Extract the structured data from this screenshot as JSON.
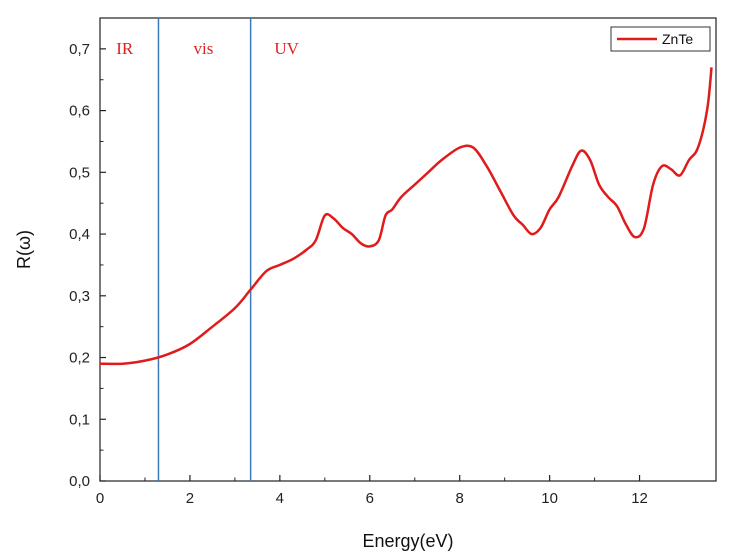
{
  "chart_data": {
    "type": "line",
    "xlabel": "Energy(eV)",
    "ylabel": "R(ω)",
    "xlim": [
      0,
      13.7
    ],
    "ylim": [
      0,
      0.75
    ],
    "x_ticks": [
      0,
      2,
      4,
      6,
      8,
      10,
      12
    ],
    "y_ticks": [
      0.0,
      0.1,
      0.2,
      0.3,
      0.4,
      0.5,
      0.6,
      0.7
    ],
    "y_tick_labels": [
      "0,0",
      "0,1",
      "0,2",
      "0,3",
      "0,4",
      "0,5",
      "0,6",
      "0,7"
    ],
    "legend": {
      "position": "top-right",
      "entries": [
        "ZnTe"
      ]
    },
    "grid": false,
    "line_color": "#e01b1b",
    "divider_color": "#3a78b8",
    "vertical_lines": [
      1.3,
      3.35
    ],
    "regions": [
      {
        "label": "IR",
        "x": 0.55
      },
      {
        "label": "vis",
        "x": 2.3
      },
      {
        "label": "UV",
        "x": 4.15
      }
    ],
    "series": [
      {
        "name": "ZnTe",
        "x": [
          0,
          0.5,
          1.0,
          1.5,
          2.0,
          2.5,
          3.0,
          3.35,
          3.7,
          4.0,
          4.3,
          4.6,
          4.8,
          5.0,
          5.2,
          5.4,
          5.6,
          5.8,
          6.0,
          6.2,
          6.35,
          6.5,
          6.7,
          7.0,
          7.3,
          7.6,
          8.0,
          8.3,
          8.6,
          8.9,
          9.2,
          9.4,
          9.6,
          9.8,
          10.0,
          10.2,
          10.5,
          10.7,
          10.9,
          11.1,
          11.3,
          11.5,
          11.7,
          11.9,
          12.1,
          12.3,
          12.5,
          12.7,
          12.9,
          13.1,
          13.3,
          13.5,
          13.6
        ],
        "y": [
          0.19,
          0.19,
          0.195,
          0.205,
          0.222,
          0.25,
          0.28,
          0.31,
          0.34,
          0.35,
          0.36,
          0.375,
          0.39,
          0.43,
          0.425,
          0.41,
          0.4,
          0.385,
          0.38,
          0.39,
          0.43,
          0.44,
          0.46,
          0.48,
          0.5,
          0.52,
          0.54,
          0.54,
          0.51,
          0.47,
          0.43,
          0.415,
          0.4,
          0.41,
          0.44,
          0.46,
          0.51,
          0.535,
          0.52,
          0.48,
          0.46,
          0.445,
          0.415,
          0.395,
          0.41,
          0.48,
          0.51,
          0.505,
          0.495,
          0.52,
          0.54,
          0.6,
          0.67
        ]
      }
    ]
  }
}
